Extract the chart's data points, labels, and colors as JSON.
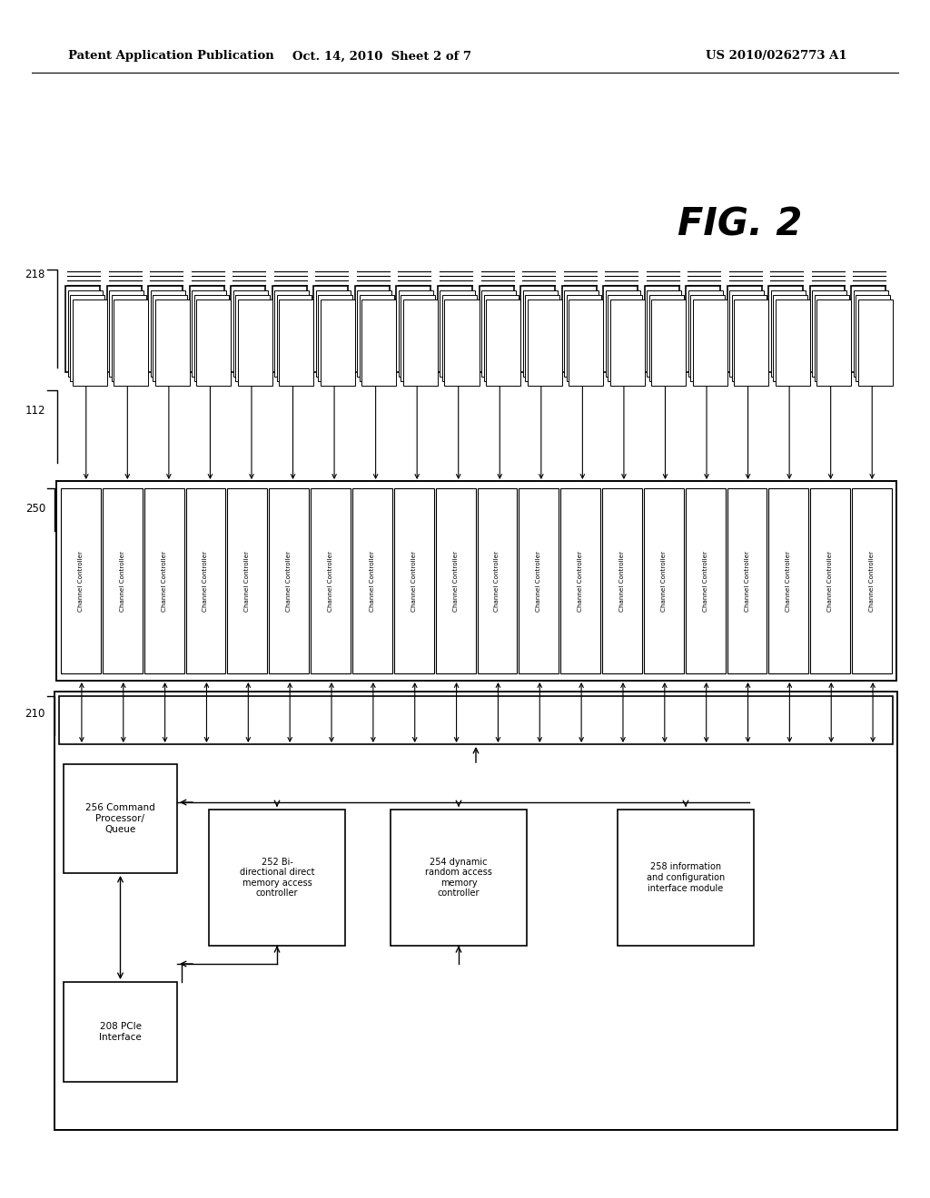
{
  "title_left": "Patent Application Publication",
  "title_mid": "Oct. 14, 2010  Sheet 2 of 7",
  "title_right": "US 2010/0262773 A1",
  "fig_label": "FIG. 2",
  "num_flash": 20,
  "num_channels": 20,
  "label_218": "218",
  "label_112": "112",
  "label_250": "250",
  "label_210": "210",
  "label_cmd": "256 Command\nProcessor/\nQueue",
  "label_bidir": "252 Bi-\ndirectional direct\nmemory access\ncontroller",
  "label_dram": "254 dynamic\nrandom access\nmemory\ncontroller",
  "label_info": "258 information\nand configuration\ninterface module",
  "label_pcie": "208 PCIe\nInterface",
  "bg_color": "#ffffff"
}
